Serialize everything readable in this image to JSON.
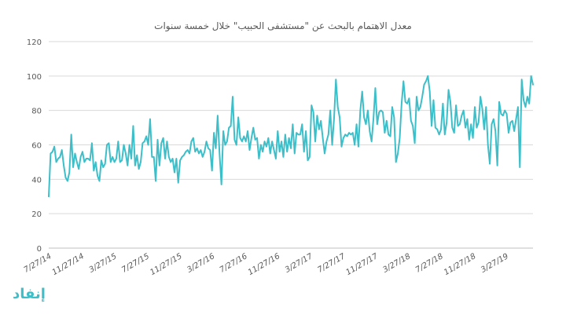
{
  "colors": {
    "series": "#3dbfc9",
    "logo": "#3dbfc9"
  },
  "logo": {
    "text": "إنفاد"
  },
  "chart_data": {
    "type": "line",
    "title": "معدل الاهتمام بالبحث عن \"مستشفى الحبيب\" خلال خمسة سنوات",
    "xlabel": "",
    "ylabel": "",
    "ylim": [
      0,
      120
    ],
    "yticks": [
      0,
      20,
      40,
      60,
      80,
      100,
      120
    ],
    "grid": true,
    "legend": "none",
    "x_ticks": [
      "7/27/14",
      "11/27/14",
      "3/27/15",
      "7/27/15",
      "11/27/15",
      "3/27/16",
      "7/27/16",
      "11/27/16",
      "3/27/17",
      "7/27/17",
      "11/27/17",
      "3/27/18",
      "7/27/18",
      "11/27/18",
      "3/27/19"
    ],
    "x_start": "2014-07-27",
    "x_interval": "weekly",
    "series": [
      {
        "values": [
          30,
          55,
          56,
          59,
          50,
          52,
          53,
          57,
          48,
          41,
          39,
          44,
          66,
          47,
          55,
          50,
          46,
          53,
          56,
          50,
          52,
          52,
          51,
          61,
          45,
          50,
          42,
          39,
          51,
          47,
          49,
          60,
          61,
          50,
          53,
          50,
          52,
          62,
          50,
          51,
          60,
          55,
          48,
          60,
          52,
          71,
          48,
          54,
          46,
          50,
          61,
          62,
          65,
          60,
          75,
          53,
          53,
          39,
          63,
          48,
          61,
          64,
          52,
          62,
          53,
          50,
          52,
          44,
          52,
          38,
          51,
          53,
          54,
          56,
          57,
          55,
          62,
          64,
          56,
          58,
          55,
          57,
          53,
          56,
          62,
          58,
          57,
          45,
          67,
          58,
          77,
          55,
          37,
          68,
          60,
          62,
          70,
          71,
          88,
          63,
          60,
          76,
          64,
          62,
          65,
          62,
          68,
          57,
          64,
          70,
          63,
          64,
          52,
          60,
          56,
          62,
          59,
          64,
          55,
          62,
          57,
          52,
          68,
          56,
          62,
          53,
          66,
          56,
          64,
          58,
          72,
          55,
          67,
          66,
          66,
          72,
          56,
          68,
          51,
          53,
          83,
          79,
          62,
          77,
          69,
          74,
          64,
          55,
          62,
          66,
          80,
          60,
          75,
          98,
          82,
          76,
          59,
          64,
          66,
          65,
          67,
          66,
          67,
          60,
          72,
          59,
          80,
          91,
          76,
          72,
          80,
          68,
          62,
          75,
          93,
          72,
          79,
          80,
          79,
          67,
          74,
          66,
          65,
          82,
          76,
          50,
          55,
          64,
          84,
          97,
          85,
          84,
          87,
          74,
          71,
          61,
          88,
          80,
          82,
          88,
          95,
          97,
          100,
          91,
          71,
          86,
          70,
          69,
          66,
          69,
          84,
          66,
          73,
          92,
          85,
          70,
          67,
          83,
          71,
          72,
          77,
          80,
          70,
          75,
          63,
          72,
          64,
          82,
          70,
          73,
          88,
          81,
          69,
          82,
          60,
          49,
          72,
          75,
          68,
          48,
          85,
          78,
          77,
          80,
          78,
          67,
          73,
          74,
          68,
          75,
          82,
          47,
          98,
          86,
          82,
          88,
          84,
          100,
          95
        ]
      }
    ]
  }
}
